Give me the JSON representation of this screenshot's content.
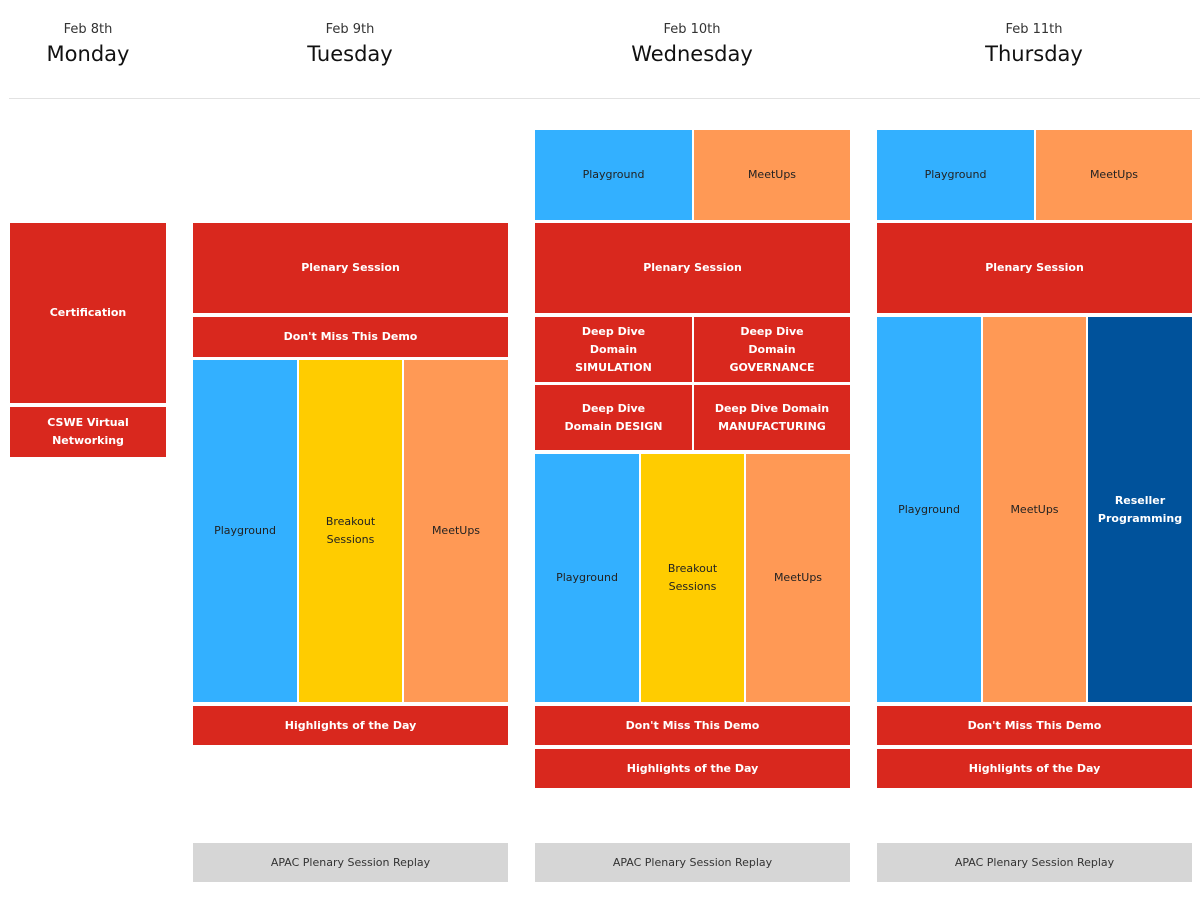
{
  "days": [
    {
      "date": "Feb 8th",
      "name": "Monday"
    },
    {
      "date": "Feb 9th",
      "name": "Tuesday"
    },
    {
      "date": "Feb 10th",
      "name": "Wednesday"
    },
    {
      "date": "Feb 11th",
      "name": "Thursday"
    }
  ],
  "colors": {
    "red": "#d9281e",
    "blue": "#33b0ff",
    "orange": "#ff9955",
    "yellow": "#ffcc00",
    "navy": "#00529b",
    "grey": "#d6d6d6"
  },
  "monday": {
    "certification": "Certification",
    "cswe": "CSWE Virtual Networking"
  },
  "tuesday": {
    "plenary": "Plenary Session",
    "demo": "Don't Miss This Demo",
    "playground": "Playground",
    "breakout": "Breakout Sessions",
    "meetups": "MeetUps",
    "highlights": "Highlights of the Day",
    "apac": "APAC Plenary Session Replay"
  },
  "wednesday": {
    "playground_top": "Playground",
    "meetups_top": "MeetUps",
    "plenary": "Plenary Session",
    "dd_simulation": "Deep Dive Domain SIMULATION",
    "dd_governance": "Deep Dive Domain GOVERNANCE",
    "dd_design": "Deep Dive Domain DESIGN",
    "dd_manufacturing": "Deep Dive Domain MANUFACTURING",
    "playground": "Playground",
    "breakout": "Breakout Sessions",
    "meetups": "MeetUps",
    "demo": "Don't Miss This Demo",
    "highlights": "Highlights of the Day",
    "apac": "APAC Plenary Session Replay"
  },
  "thursday": {
    "playground_top": "Playground",
    "meetups_top": "MeetUps",
    "plenary": "Plenary Session",
    "playground": "Playground",
    "meetups": "MeetUps",
    "reseller": "Reseller Programming",
    "demo": "Don't Miss This Demo",
    "highlights": "Highlights of the Day",
    "apac": "APAC Plenary Session Replay"
  }
}
